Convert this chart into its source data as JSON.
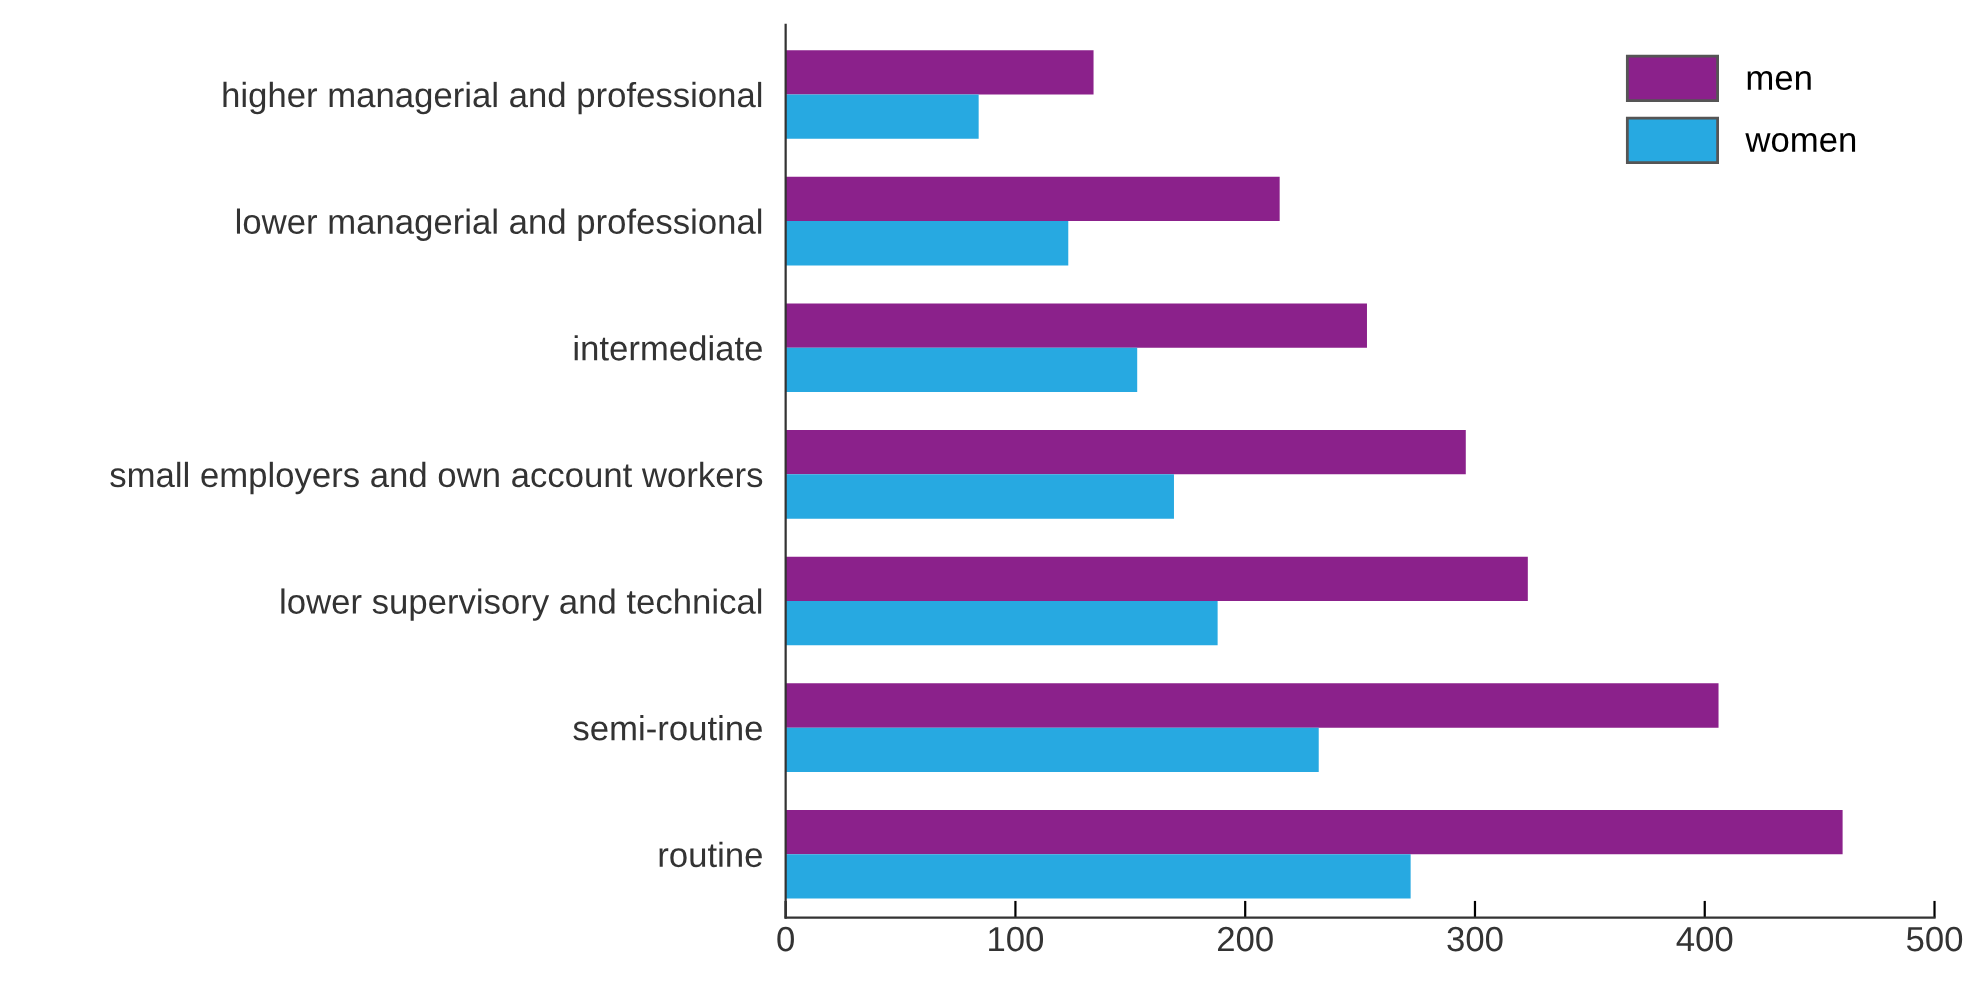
{
  "chart_data": {
    "type": "bar",
    "orientation": "horizontal",
    "categories": [
      "higher managerial and professional",
      "lower managerial and professional",
      "intermediate",
      "small employers and own account workers",
      "lower supervisory and technical",
      "semi-routine",
      "routine"
    ],
    "series": [
      {
        "name": "men",
        "color": "#8b218b",
        "values": [
          134,
          215,
          253,
          296,
          323,
          406,
          460
        ]
      },
      {
        "name": "women",
        "color": "#27a9e1",
        "values": [
          84,
          123,
          153,
          169,
          188,
          232,
          272
        ]
      }
    ],
    "xlim": [
      0,
      500
    ],
    "xticks": [
      0,
      100,
      200,
      300,
      400,
      500
    ],
    "grid": false,
    "legend": "top right"
  }
}
